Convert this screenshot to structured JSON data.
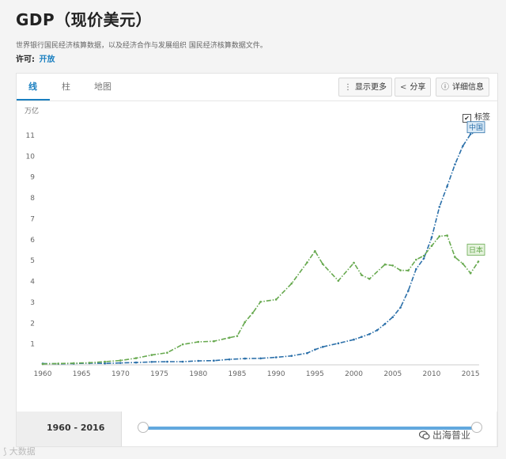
{
  "page": {
    "title": "GDP（现价美元）",
    "source": "世界银行国民经济核算数据，以及经济合作与发展组织 国民经济核算数据文件。",
    "license_label": "许可:",
    "license_value": "开放"
  },
  "tabs": [
    {
      "label": "线",
      "active": true
    },
    {
      "label": "柱",
      "active": false
    },
    {
      "label": "地图",
      "active": false
    }
  ],
  "toolbar": {
    "more_label": "显示更多",
    "share_label": "分享",
    "details_label": "详细信息"
  },
  "label_toggle": {
    "label": "标签",
    "checked": true
  },
  "range": {
    "label": "1960 - 2016"
  },
  "watermarks": {
    "left": "大数据",
    "right": "出海普业"
  },
  "colors": {
    "china": "#2a6fa9",
    "japan": "#67a94f",
    "accent": "#1a7fc0"
  },
  "chart_data": {
    "type": "line",
    "ylabel": "万亿",
    "xlabel": "",
    "xlim": [
      1960,
      2016
    ],
    "ylim": [
      0,
      11.5
    ],
    "x_ticks": [
      1960,
      1965,
      1970,
      1975,
      1980,
      1985,
      1990,
      1995,
      2000,
      2005,
      2010,
      2015
    ],
    "y_ticks": [
      1,
      2,
      3,
      4,
      5,
      6,
      7,
      8,
      9,
      10,
      11
    ],
    "grid": false,
    "series": [
      {
        "name": "中国",
        "color": "#2a6fa9",
        "x": [
          1960,
          1962,
          1964,
          1966,
          1968,
          1970,
          1972,
          1974,
          1976,
          1978,
          1980,
          1982,
          1984,
          1986,
          1988,
          1990,
          1992,
          1994,
          1995,
          1996,
          1998,
          2000,
          2001,
          2002,
          2003,
          2004,
          2005,
          2006,
          2007,
          2008,
          2009,
          2010,
          2011,
          2012,
          2013,
          2014,
          2015,
          2016
        ],
        "values": [
          0.06,
          0.05,
          0.06,
          0.08,
          0.07,
          0.09,
          0.11,
          0.14,
          0.15,
          0.15,
          0.19,
          0.2,
          0.26,
          0.3,
          0.31,
          0.36,
          0.43,
          0.56,
          0.73,
          0.86,
          1.03,
          1.21,
          1.34,
          1.47,
          1.66,
          1.96,
          2.29,
          2.75,
          3.55,
          4.59,
          5.1,
          6.1,
          7.57,
          8.56,
          9.61,
          10.48,
          11.06,
          11.2
        ]
      },
      {
        "name": "日本",
        "color": "#67a94f",
        "x": [
          1960,
          1962,
          1964,
          1966,
          1968,
          1970,
          1972,
          1974,
          1976,
          1978,
          1980,
          1982,
          1984,
          1985,
          1986,
          1987,
          1988,
          1990,
          1992,
          1994,
          1995,
          1996,
          1998,
          2000,
          2001,
          2002,
          2004,
          2005,
          2006,
          2007,
          2008,
          2009,
          2010,
          2011,
          2012,
          2013,
          2014,
          2015,
          2016
        ],
        "values": [
          0.04,
          0.06,
          0.08,
          0.1,
          0.15,
          0.21,
          0.32,
          0.47,
          0.58,
          0.98,
          1.1,
          1.13,
          1.3,
          1.38,
          2.05,
          2.49,
          3.02,
          3.13,
          3.9,
          4.91,
          5.45,
          4.83,
          4.03,
          4.89,
          4.3,
          4.12,
          4.81,
          4.76,
          4.53,
          4.52,
          5.04,
          5.23,
          5.7,
          6.16,
          6.2,
          5.16,
          4.85,
          4.39,
          4.95
        ]
      }
    ]
  }
}
